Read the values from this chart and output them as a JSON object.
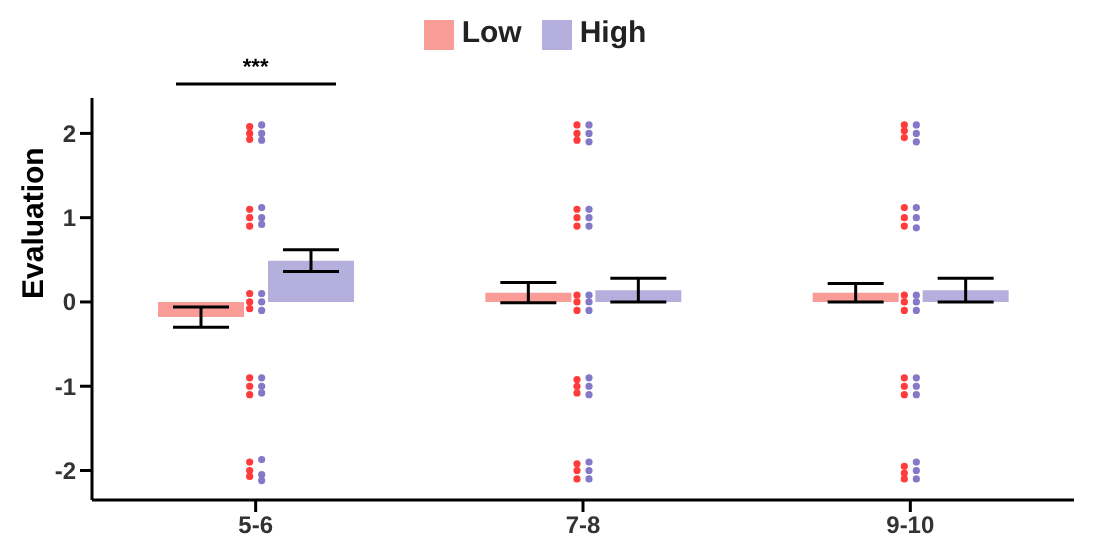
{
  "chart_data": {
    "type": "bar",
    "ylabel": "Evaluation",
    "categories": [
      "5-6",
      "7-8",
      "9-10"
    ],
    "ylim": [
      -2.35,
      2.42
    ],
    "yticks": [
      -2,
      -1,
      0,
      1,
      2
    ],
    "legend": "top",
    "annotations": [
      "***"
    ],
    "series": [
      {
        "name": "Low",
        "color": "#f99b97",
        "values": [
          -0.18,
          0.11,
          0.11
        ],
        "errors": [
          0.12,
          0.12,
          0.11
        ]
      },
      {
        "name": "High",
        "color": "#b4afdc",
        "values": [
          0.49,
          0.14,
          0.14
        ],
        "errors": [
          0.13,
          0.14,
          0.14
        ]
      },
      {
        "type": "scatter",
        "color": "#ff3b3b",
        "x": [
          "5-6",
          "5-6",
          "5-6",
          "5-6",
          "5-6",
          "5-6",
          "5-6",
          "5-6",
          "5-6",
          "5-6",
          "5-6",
          "5-6",
          "5-6",
          "5-6",
          "5-6",
          "7-8",
          "7-8",
          "7-8",
          "7-8",
          "7-8",
          "7-8",
          "7-8",
          "7-8",
          "7-8",
          "7-8",
          "7-8",
          "7-8",
          "7-8",
          "7-8",
          "7-8",
          "9-10",
          "9-10",
          "9-10",
          "9-10",
          "9-10",
          "9-10",
          "9-10",
          "9-10",
          "9-10",
          "9-10",
          "9-10",
          "9-10",
          "9-10",
          "9-10",
          "9-10"
        ],
        "values": [
          2.08,
          2.0,
          1.93,
          1.1,
          1.0,
          0.9,
          0.1,
          0.0,
          -0.08,
          -0.9,
          -1.0,
          -1.1,
          -1.9,
          -2.0,
          -2.07,
          2.1,
          2.0,
          1.92,
          1.1,
          1.0,
          0.9,
          0.08,
          0.0,
          -0.1,
          -0.92,
          -1.0,
          -1.08,
          -1.92,
          -2.0,
          -2.1,
          2.1,
          2.03,
          1.95,
          1.12,
          1.0,
          0.9,
          0.08,
          0.0,
          -0.1,
          -0.9,
          -1.0,
          -1.1,
          -1.95,
          -2.03,
          -2.1
        ]
      },
      {
        "type": "scatter",
        "color": "#8478c8",
        "x": [
          "5-6",
          "5-6",
          "5-6",
          "5-6",
          "5-6",
          "5-6",
          "5-6",
          "5-6",
          "5-6",
          "5-6",
          "5-6",
          "5-6",
          "5-6",
          "5-6",
          "5-6",
          "7-8",
          "7-8",
          "7-8",
          "7-8",
          "7-8",
          "7-8",
          "7-8",
          "7-8",
          "7-8",
          "7-8",
          "7-8",
          "7-8",
          "7-8",
          "7-8",
          "7-8",
          "9-10",
          "9-10",
          "9-10",
          "9-10",
          "9-10",
          "9-10",
          "9-10",
          "9-10",
          "9-10",
          "9-10",
          "9-10",
          "9-10",
          "9-10",
          "9-10",
          "9-10"
        ],
        "values": [
          2.1,
          2.0,
          1.92,
          1.12,
          1.0,
          0.92,
          0.1,
          0.0,
          -0.1,
          -0.9,
          -1.0,
          -1.08,
          -1.87,
          -2.05,
          -2.12,
          2.1,
          2.0,
          1.9,
          1.1,
          1.0,
          0.9,
          0.08,
          0.0,
          -0.1,
          -0.9,
          -1.0,
          -1.1,
          -1.9,
          -2.0,
          -2.1,
          2.1,
          2.0,
          1.9,
          1.12,
          1.0,
          0.88,
          0.08,
          0.0,
          -0.1,
          -0.9,
          -1.0,
          -1.1,
          -1.9,
          -2.0,
          -2.1
        ]
      }
    ]
  }
}
